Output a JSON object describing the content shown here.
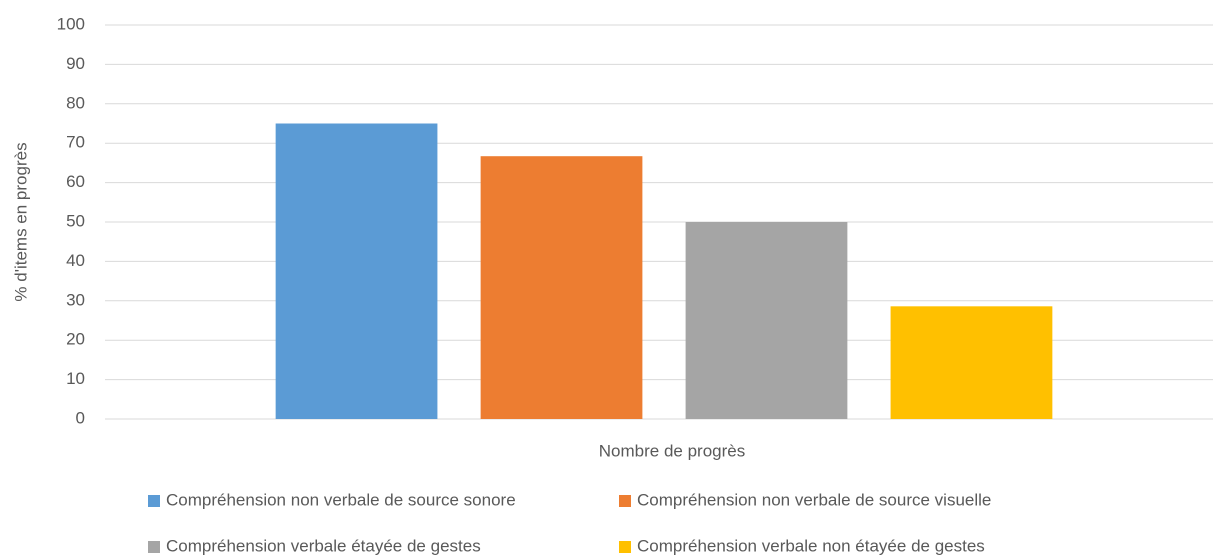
{
  "chart_data": {
    "type": "bar",
    "categories": [
      "Nombre de progrès"
    ],
    "y_label": "% d'items en progrès",
    "series": [
      {
        "name": "Compréhension non verbale de source sonore",
        "color": "#5b9bd5",
        "values": [
          75
        ]
      },
      {
        "name": "Compréhension non verbale de source visuelle",
        "color": "#ed7d31",
        "values": [
          66.7
        ]
      },
      {
        "name": "Compréhension verbale étayée de gestes",
        "color": "#a5a5a5",
        "values": [
          50
        ]
      },
      {
        "name": "Compréhension verbale non étayée de gestes",
        "color": "#ffc000",
        "values": [
          28.6
        ]
      }
    ],
    "ylim": [
      0,
      100
    ],
    "yticks": [
      0,
      10,
      20,
      30,
      40,
      50,
      60,
      70,
      80,
      90,
      100
    ],
    "grid": true,
    "legend": "bottom"
  }
}
